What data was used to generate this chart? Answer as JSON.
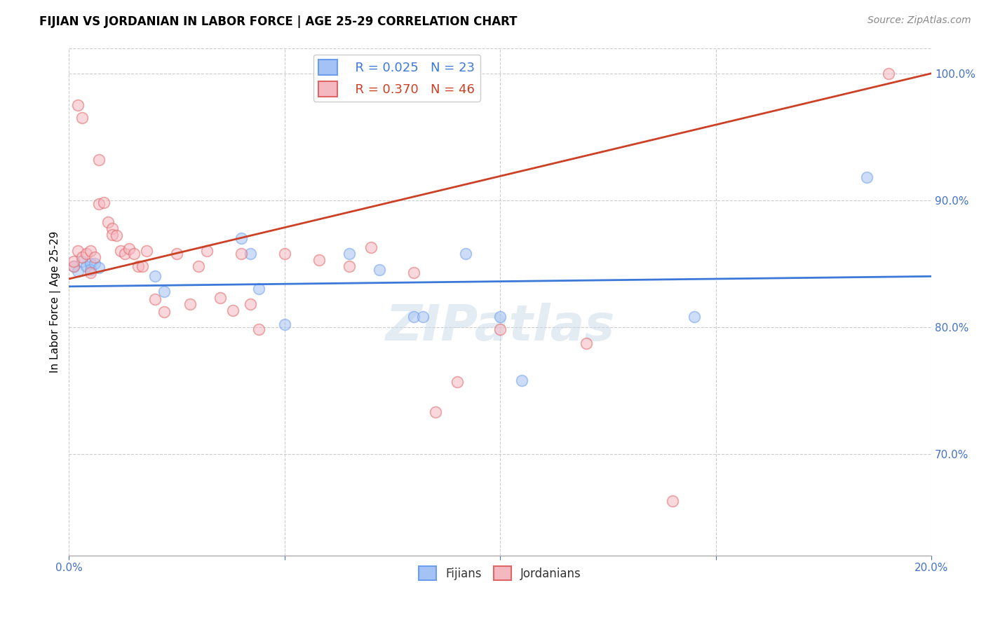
{
  "title": "FIJIAN VS JORDANIAN IN LABOR FORCE | AGE 25-29 CORRELATION CHART",
  "source": "Source: ZipAtlas.com",
  "ylabel_label": "In Labor Force | Age 25-29",
  "xlim": [
    0.0,
    0.2
  ],
  "ylim": [
    0.62,
    1.02
  ],
  "yticks": [
    0.7,
    0.8,
    0.9,
    1.0
  ],
  "ytick_labels": [
    "70.0%",
    "80.0%",
    "90.0%",
    "100.0%"
  ],
  "xticks": [
    0.0,
    0.05,
    0.1,
    0.15,
    0.2
  ],
  "xtick_labels": [
    "0.0%",
    "",
    "",
    "",
    "20.0%"
  ],
  "fijian_color": "#a4c2f4",
  "jordanian_color": "#f4b8c1",
  "fijian_edge_color": "#6d9eeb",
  "jordanian_edge_color": "#e06666",
  "fijian_line_color": "#3c78d8",
  "jordanian_line_color": "#cc4125",
  "legend_fijian_r": "R = 0.025",
  "legend_fijian_n": "N = 23",
  "legend_jordanian_r": "R = 0.370",
  "legend_jordanian_n": "N = 46",
  "watermark": "ZIPatlas",
  "fijian_x": [
    0.001,
    0.002,
    0.003,
    0.004,
    0.005,
    0.005,
    0.006,
    0.007,
    0.02,
    0.022,
    0.04,
    0.042,
    0.044,
    0.05,
    0.065,
    0.072,
    0.08,
    0.082,
    0.092,
    0.1,
    0.105,
    0.145,
    0.185
  ],
  "fijian_y": [
    0.848,
    0.844,
    0.852,
    0.848,
    0.85,
    0.845,
    0.85,
    0.847,
    0.84,
    0.828,
    0.87,
    0.858,
    0.83,
    0.802,
    0.858,
    0.845,
    0.808,
    0.808,
    0.858,
    0.808,
    0.758,
    0.808,
    0.918
  ],
  "jordanian_x": [
    0.001,
    0.001,
    0.002,
    0.002,
    0.003,
    0.003,
    0.004,
    0.005,
    0.005,
    0.006,
    0.007,
    0.007,
    0.008,
    0.009,
    0.01,
    0.01,
    0.011,
    0.012,
    0.013,
    0.014,
    0.015,
    0.016,
    0.017,
    0.018,
    0.02,
    0.022,
    0.025,
    0.028,
    0.03,
    0.032,
    0.035,
    0.038,
    0.04,
    0.042,
    0.044,
    0.05,
    0.058,
    0.065,
    0.07,
    0.08,
    0.085,
    0.09,
    0.1,
    0.12,
    0.14,
    0.19
  ],
  "jordanian_y": [
    0.848,
    0.852,
    0.86,
    0.975,
    0.965,
    0.855,
    0.858,
    0.86,
    0.843,
    0.855,
    0.932,
    0.897,
    0.898,
    0.883,
    0.878,
    0.873,
    0.872,
    0.86,
    0.858,
    0.862,
    0.858,
    0.848,
    0.848,
    0.86,
    0.822,
    0.812,
    0.858,
    0.818,
    0.848,
    0.86,
    0.823,
    0.813,
    0.858,
    0.818,
    0.798,
    0.858,
    0.853,
    0.848,
    0.863,
    0.843,
    0.733,
    0.757,
    0.798,
    0.787,
    0.663,
    1.0
  ],
  "fijian_trend_x": [
    0.0,
    0.2
  ],
  "fijian_trend_y": [
    0.832,
    0.84
  ],
  "jordanian_trend_x": [
    0.0,
    0.2
  ],
  "jordanian_trend_y": [
    0.838,
    1.0
  ],
  "background_color": "#ffffff",
  "grid_color": "#cccccc",
  "title_color": "#000000",
  "right_tick_color": "#4472c4",
  "marker_size": 130,
  "marker_alpha": 0.55,
  "marker_linewidth": 1.2
}
